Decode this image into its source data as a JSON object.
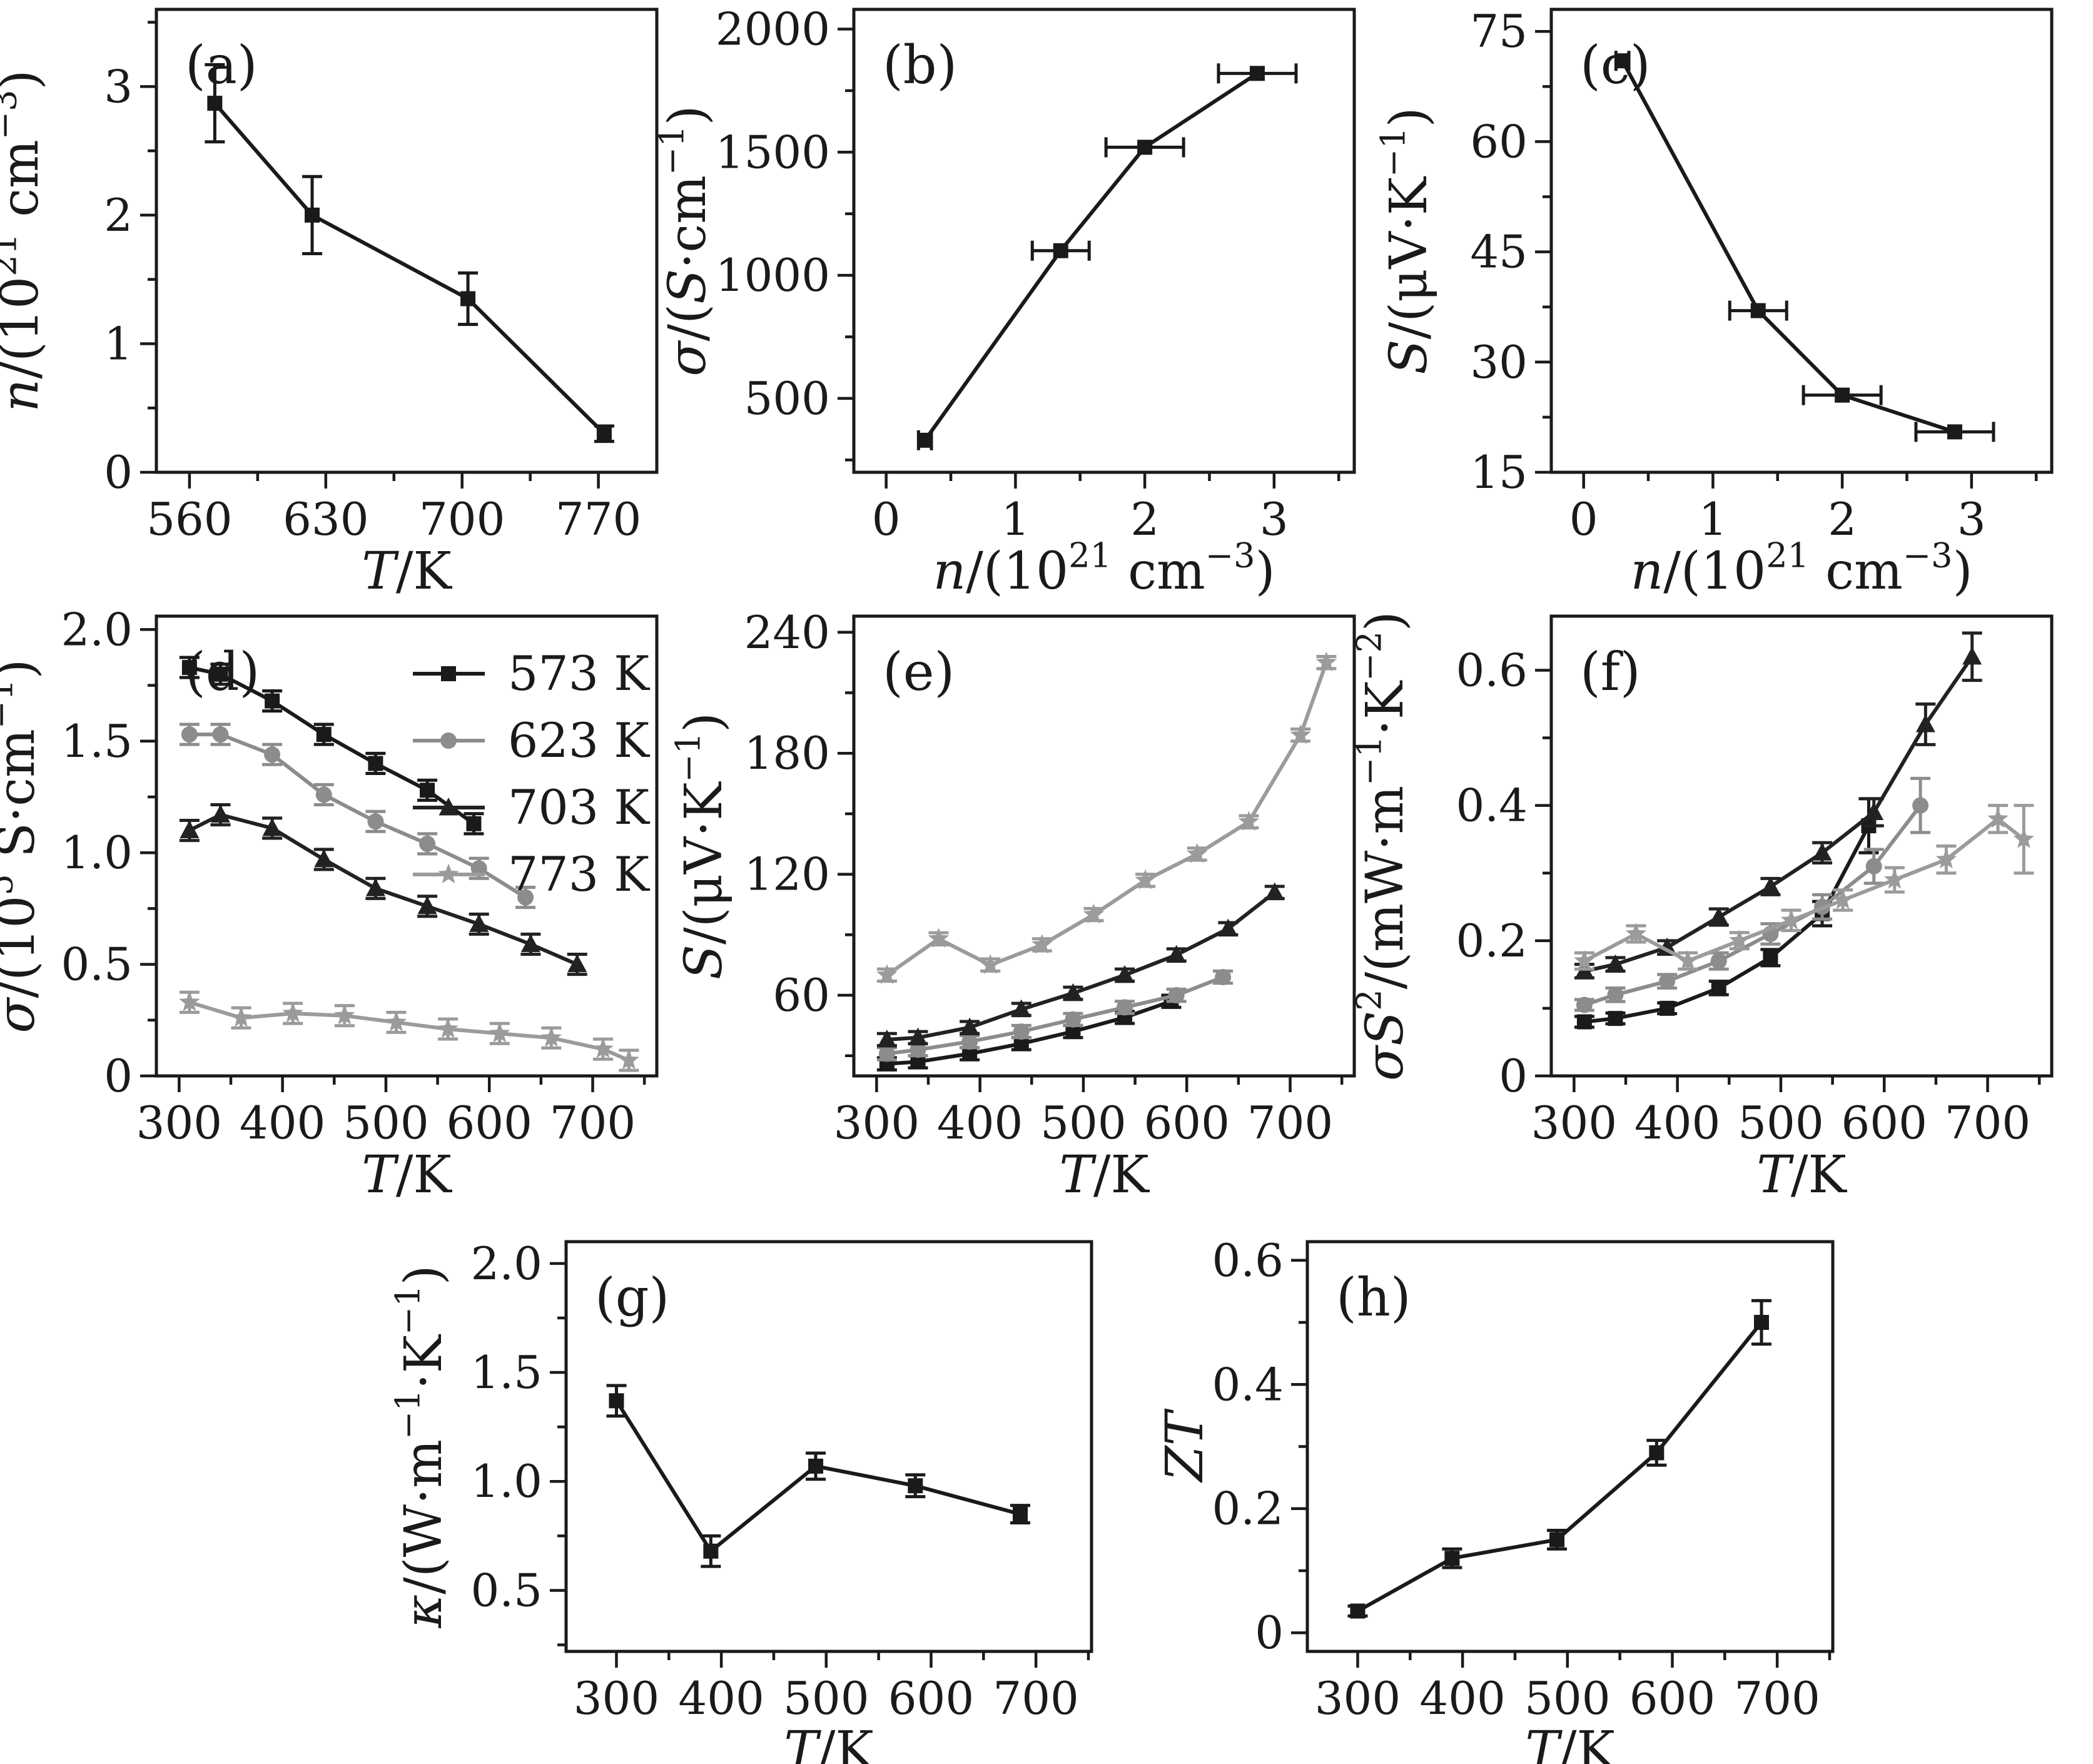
{
  "figure": {
    "background": "#ffffff",
    "ink_color": "#1a1a1a",
    "gray_color": "#8c8c8c",
    "light_gray_color": "#9b9b9b"
  },
  "chart_data": [
    {
      "id": "a",
      "label": "(a)",
      "type": "line",
      "x_label": "*T*/K",
      "y_label": "*n*/(10^{21} cm^{−3})",
      "x_range": [
        543,
        800
      ],
      "x_ticks": [
        560,
        630,
        700,
        770
      ],
      "x_tick_labels": [
        "560",
        "630",
        "700",
        "770"
      ],
      "y_range": [
        0,
        3.6
      ],
      "y_ticks": [
        0,
        1,
        2,
        3
      ],
      "y_tick_labels": [
        "0",
        "1",
        "2",
        "3"
      ],
      "series": [
        {
          "name": "n vs T",
          "marker": "square",
          "color": "#1a1a1a",
          "x": [
            573,
            623,
            703,
            773
          ],
          "y": [
            2.87,
            2.0,
            1.35,
            0.3
          ],
          "y_err": [
            0.3,
            0.3,
            0.2,
            0.06
          ]
        }
      ]
    },
    {
      "id": "b",
      "label": "(b)",
      "type": "line",
      "x_label": "*n*/(10^{21} cm^{−3})",
      "y_label": "*σ*/(*S*·cm^{−1})",
      "x_range": [
        -0.25,
        3.62
      ],
      "x_ticks": [
        0,
        1,
        2,
        3
      ],
      "x_tick_labels": [
        "0",
        "1",
        "2",
        "3"
      ],
      "y_range": [
        200,
        2080
      ],
      "y_ticks": [
        500,
        1000,
        1500,
        2000
      ],
      "y_tick_labels": [
        "500",
        "1000",
        "1500",
        "2000"
      ],
      "series": [
        {
          "name": "sigma vs n",
          "marker": "square",
          "color": "#1a1a1a",
          "x": [
            0.3,
            1.35,
            2.0,
            2.87
          ],
          "y": [
            330,
            1100,
            1520,
            1820
          ],
          "x_err": [
            0.05,
            0.22,
            0.3,
            0.3
          ]
        }
      ]
    },
    {
      "id": "c",
      "label": "(c)",
      "type": "line",
      "x_label": "*n*/(10^{21} cm^{−3})",
      "y_label": "*S*/(μV·K^{−1})",
      "x_range": [
        -0.25,
        3.62
      ],
      "x_ticks": [
        0,
        1,
        2,
        3
      ],
      "x_tick_labels": [
        "0",
        "1",
        "2",
        "3"
      ],
      "y_range": [
        15,
        78
      ],
      "y_ticks": [
        15,
        30,
        45,
        60,
        75
      ],
      "y_tick_labels": [
        "15",
        "30",
        "45",
        "60",
        "75"
      ],
      "series": [
        {
          "name": "S vs n",
          "marker": "square",
          "color": "#1a1a1a",
          "x": [
            0.3,
            1.35,
            2.0,
            2.87
          ],
          "y": [
            71,
            37,
            25.5,
            20.5
          ],
          "x_err": [
            0.05,
            0.22,
            0.3,
            0.3
          ]
        }
      ]
    },
    {
      "id": "d",
      "label": "(d)",
      "type": "line",
      "legend": true,
      "x_label": "*T*/K",
      "y_label": "*σ*/(10^{5} S·cm^{−1})",
      "x_range": [
        278,
        762
      ],
      "x_ticks": [
        300,
        400,
        500,
        600,
        700
      ],
      "x_tick_labels": [
        "300",
        "400",
        "500",
        "600",
        "700"
      ],
      "y_range": [
        0,
        2.06
      ],
      "y_ticks": [
        0,
        0.5,
        1.0,
        1.5,
        2.0
      ],
      "y_tick_labels": [
        "0",
        "0.5",
        "1.0",
        "1.5",
        "2.0"
      ],
      "series": [
        {
          "name": "573 K",
          "marker": "square",
          "color": "#1a1a1a",
          "x": [
            310,
            340,
            390,
            440,
            490,
            540,
            585
          ],
          "y": [
            1.83,
            1.8,
            1.68,
            1.53,
            1.4,
            1.28,
            1.13
          ],
          "y_err": 0.045
        },
        {
          "name": "623 K",
          "marker": "circle",
          "color": "#8c8c8c",
          "x": [
            310,
            340,
            390,
            440,
            490,
            540,
            590,
            635
          ],
          "y": [
            1.53,
            1.53,
            1.44,
            1.26,
            1.14,
            1.04,
            0.93,
            0.8
          ],
          "y_err": 0.045
        },
        {
          "name": "703 K",
          "marker": "triangle",
          "color": "#222222",
          "x": [
            310,
            340,
            390,
            440,
            490,
            540,
            590,
            640,
            685
          ],
          "y": [
            1.1,
            1.17,
            1.11,
            0.97,
            0.84,
            0.76,
            0.68,
            0.59,
            0.5
          ],
          "y_err": 0.045
        },
        {
          "name": "773 K",
          "marker": "star",
          "color": "#9b9b9b",
          "x": [
            310,
            360,
            410,
            460,
            510,
            560,
            610,
            660,
            710,
            735
          ],
          "y": [
            0.33,
            0.26,
            0.28,
            0.27,
            0.24,
            0.21,
            0.19,
            0.17,
            0.12,
            0.07
          ],
          "y_err": 0.045
        }
      ]
    },
    {
      "id": "e",
      "label": "(e)",
      "type": "line",
      "x_label": "*T*/K",
      "y_label": "*S*/(μV·K^{−1})",
      "x_range": [
        278,
        762
      ],
      "x_ticks": [
        300,
        400,
        500,
        600,
        700
      ],
      "x_tick_labels": [
        "300",
        "400",
        "500",
        "600",
        "700"
      ],
      "y_range": [
        20,
        248
      ],
      "y_ticks": [
        60,
        120,
        180,
        240
      ],
      "y_tick_labels": [
        "60",
        "120",
        "180",
        "240"
      ],
      "series": [
        {
          "name": "573 K",
          "marker": "square",
          "color": "#1a1a1a",
          "x": [
            310,
            340,
            390,
            440,
            490,
            540,
            585
          ],
          "y": [
            26,
            27,
            31,
            36,
            42,
            49,
            57
          ],
          "y_err": 3
        },
        {
          "name": "623 K",
          "marker": "circle",
          "color": "#8c8c8c",
          "x": [
            310,
            340,
            390,
            440,
            490,
            540,
            590,
            635
          ],
          "y": [
            31,
            33,
            37,
            42,
            48,
            54,
            60,
            69
          ],
          "y_err": 3
        },
        {
          "name": "703 K",
          "marker": "triangle",
          "color": "#222222",
          "x": [
            310,
            340,
            390,
            440,
            490,
            540,
            590,
            640,
            685
          ],
          "y": [
            38,
            39,
            44,
            53,
            61,
            70,
            80,
            93,
            111
          ],
          "y_err": 3
        },
        {
          "name": "773 K",
          "marker": "star",
          "color": "#9b9b9b",
          "x": [
            310,
            360,
            410,
            460,
            510,
            560,
            610,
            660,
            710,
            735
          ],
          "y": [
            70,
            88,
            75,
            85,
            100,
            117,
            130,
            146,
            189,
            225
          ],
          "y_err": 3
        }
      ]
    },
    {
      "id": "f",
      "label": "(f)",
      "type": "line",
      "x_label": "*T*/K",
      "y_label": "*σS*^{2}/(mW·m^{−1}·K^{−2})",
      "x_range": [
        278,
        762
      ],
      "x_ticks": [
        300,
        400,
        500,
        600,
        700
      ],
      "x_tick_labels": [
        "300",
        "400",
        "500",
        "600",
        "700"
      ],
      "y_range": [
        0,
        0.68
      ],
      "y_ticks": [
        0,
        0.2,
        0.4,
        0.6
      ],
      "y_tick_labels": [
        "0",
        "0.2",
        "0.4",
        "0.6"
      ],
      "series": [
        {
          "name": "573 K",
          "marker": "square",
          "color": "#1a1a1a",
          "x": [
            310,
            340,
            390,
            440,
            490,
            540,
            585
          ],
          "y": [
            0.08,
            0.085,
            0.1,
            0.13,
            0.175,
            0.24,
            0.37
          ],
          "y_err": [
            0.008,
            0.008,
            0.008,
            0.01,
            0.012,
            0.018,
            0.04
          ]
        },
        {
          "name": "623 K",
          "marker": "circle",
          "color": "#8c8c8c",
          "x": [
            310,
            340,
            390,
            440,
            490,
            540,
            590,
            635
          ],
          "y": [
            0.105,
            0.12,
            0.14,
            0.17,
            0.21,
            0.25,
            0.31,
            0.4
          ],
          "y_err": [
            0.008,
            0.01,
            0.01,
            0.012,
            0.015,
            0.018,
            0.025,
            0.04
          ]
        },
        {
          "name": "703 K",
          "marker": "triangle",
          "color": "#222222",
          "x": [
            310,
            340,
            390,
            440,
            490,
            540,
            590,
            640,
            685
          ],
          "y": [
            0.155,
            0.165,
            0.19,
            0.235,
            0.28,
            0.33,
            0.39,
            0.52,
            0.62
          ],
          "y_err": [
            0.01,
            0.01,
            0.01,
            0.012,
            0.012,
            0.015,
            0.02,
            0.03,
            0.035
          ]
        },
        {
          "name": "773 K",
          "marker": "star",
          "color": "#9b9b9b",
          "x": [
            310,
            360,
            410,
            460,
            510,
            560,
            610,
            660,
            710,
            735
          ],
          "y": [
            0.17,
            0.21,
            0.17,
            0.2,
            0.23,
            0.26,
            0.29,
            0.32,
            0.38,
            0.35
          ],
          "y_err": [
            0.012,
            0.012,
            0.012,
            0.012,
            0.015,
            0.015,
            0.018,
            0.02,
            0.02,
            0.05
          ]
        }
      ]
    },
    {
      "id": "g",
      "label": "(g)",
      "type": "line",
      "x_label": "*T*/K",
      "y_label": "*κ*/(W·m^{−1}·K^{−1})",
      "x_range": [
        252,
        753
      ],
      "x_ticks": [
        300,
        400,
        500,
        600,
        700
      ],
      "x_tick_labels": [
        "300",
        "400",
        "500",
        "600",
        "700"
      ],
      "y_range": [
        0.22,
        2.1
      ],
      "y_ticks": [
        0.5,
        1.0,
        1.5,
        2.0
      ],
      "y_tick_labels": [
        "0.5",
        "1.0",
        "1.5",
        "2.0"
      ],
      "series": [
        {
          "name": "kappa vs T",
          "marker": "square",
          "color": "#1a1a1a",
          "x": [
            300,
            390,
            490,
            585,
            685
          ],
          "y": [
            1.37,
            0.68,
            1.07,
            0.98,
            0.85
          ],
          "y_err": [
            0.07,
            0.07,
            0.06,
            0.05,
            0.04
          ]
        }
      ]
    },
    {
      "id": "h",
      "label": "(h)",
      "type": "line",
      "x_label": "*T*/K",
      "y_label": "*ZT*",
      "x_range": [
        252,
        753
      ],
      "x_ticks": [
        300,
        400,
        500,
        600,
        700
      ],
      "x_tick_labels": [
        "300",
        "400",
        "500",
        "600",
        "700"
      ],
      "y_range": [
        -0.03,
        0.63
      ],
      "y_ticks": [
        0,
        0.2,
        0.4,
        0.6
      ],
      "y_tick_labels": [
        "0",
        "0.2",
        "0.4",
        "0.6"
      ],
      "series": [
        {
          "name": "ZT vs T",
          "marker": "square",
          "color": "#1a1a1a",
          "x": [
            300,
            390,
            490,
            585,
            685
          ],
          "y": [
            0.035,
            0.12,
            0.15,
            0.29,
            0.5
          ],
          "y_err": [
            0.008,
            0.015,
            0.015,
            0.02,
            0.035
          ]
        }
      ]
    }
  ]
}
